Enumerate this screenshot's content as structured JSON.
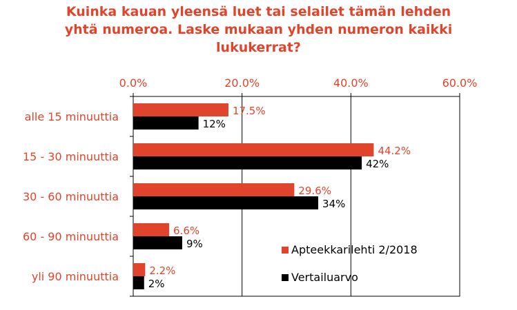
{
  "chart_data": {
    "type": "bar",
    "orientation": "horizontal",
    "title_lines": [
      "Kuinka kauan yleensä luet tai selailet tämän lehden",
      "yhtä numeroa. Laske mukaan yhden numeron kaikki",
      "lukukerrat?"
    ],
    "categories": [
      "alle 15 minuuttia",
      "15 - 30 minuuttia",
      "30 - 60 minuuttia",
      "60 - 90 minuuttia",
      "yli 90 minuuttia"
    ],
    "series": [
      {
        "name": "Apteekkarilehti 2/2018",
        "color": "#e0442a",
        "values": [
          17.5,
          44.2,
          29.6,
          6.6,
          2.2
        ],
        "labels": [
          "17.5%",
          "44.2%",
          "29.6%",
          "6.6%",
          "2.2%"
        ]
      },
      {
        "name": "Vertailuarvo",
        "color": "#000000",
        "values": [
          12,
          42,
          34,
          9,
          2
        ],
        "labels": [
          "12%",
          "42%",
          "34%",
          "9%",
          "2%"
        ]
      }
    ],
    "xlim": [
      0,
      60
    ],
    "xticks": [
      0,
      20,
      40,
      60
    ],
    "xtick_labels": [
      "0.0%",
      "20.0%",
      "40.0%",
      "60.0%"
    ],
    "x_axis_position": "top",
    "grid": true,
    "legend_position": "bottom-right"
  }
}
